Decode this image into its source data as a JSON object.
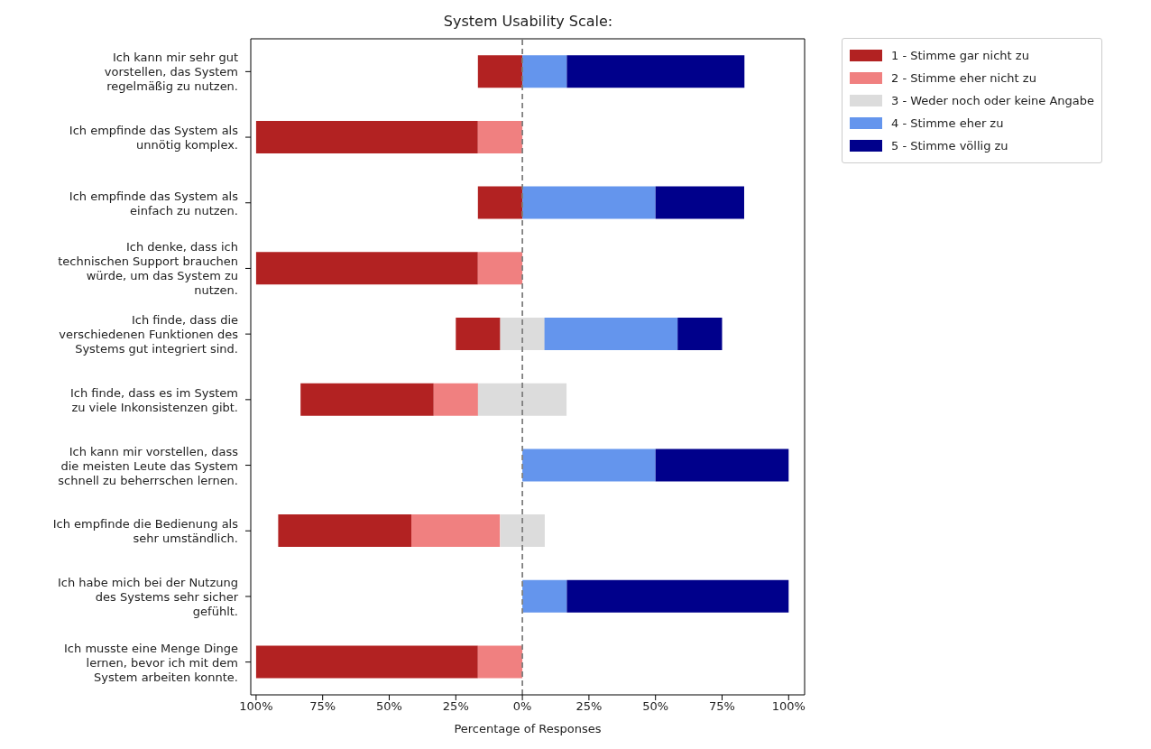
{
  "chart_data": {
    "type": "bar",
    "orientation": "horizontal",
    "title": "System Usability Scale:",
    "xlabel": "Percentage of Responses",
    "categories": [
      "Ich kann mir sehr gut vorstellen, das System regelmäßig zu nutzen.",
      "Ich empfinde das System als unnötig komplex.",
      "Ich empfinde das System als einfach zu nutzen.",
      "Ich denke, dass ich technischen Support brauchen würde, um das System zu nutzen.",
      "Ich finde, dass die verschiedenen Funktionen des Systems gut integriert sind.",
      "Ich finde, dass es im System zu viele Inkonsistenzen gibt.",
      "Ich kann mir vorstellen, dass die meisten Leute das System schnell zu beherrschen lernen.",
      "Ich empfinde die Bedienung als sehr umständlich.",
      "Ich habe mich bei der Nutzung des Systems sehr sicher gefühlt.",
      "Ich musste eine Menge Dinge lernen, bevor ich mit dem System arbeiten konnte."
    ],
    "series": [
      {
        "name": "1 - Stimme gar nicht zu",
        "color": "#b22222",
        "values": [
          16.7,
          83.3,
          16.7,
          83.3,
          16.7,
          50,
          null,
          50,
          null,
          83.3
        ],
        "base": [
          -16.7,
          -100,
          -16.7,
          -100,
          -25,
          -83.3,
          null,
          -91.7,
          null,
          -100
        ]
      },
      {
        "name": "2 - Stimme eher nicht zu",
        "color": "#f08080",
        "values": [
          null,
          16.7,
          null,
          16.7,
          null,
          16.7,
          null,
          33.3,
          null,
          16.7
        ],
        "base": [
          null,
          -16.7,
          null,
          -16.7,
          null,
          -33.3,
          null,
          -41.7,
          null,
          -16.7
        ]
      },
      {
        "name": "3 - Weder noch oder keine Angabe",
        "color": "#dcdcdc",
        "values": [
          null,
          null,
          null,
          null,
          16.7,
          33.3,
          null,
          16.7,
          null,
          null
        ],
        "base": [
          null,
          null,
          null,
          null,
          -8.3,
          -16.7,
          null,
          -8.3,
          null,
          null
        ]
      },
      {
        "name": "4 - Stimme eher zu",
        "color": "#6495ed",
        "values": [
          16.7,
          null,
          50,
          null,
          50,
          null,
          50,
          null,
          16.7,
          null
        ],
        "base": [
          0,
          null,
          0,
          null,
          8.3,
          null,
          0,
          null,
          0,
          null
        ]
      },
      {
        "name": "5 - Stimme völlig zu",
        "color": "#00008b",
        "values": [
          66.7,
          null,
          33.3,
          null,
          16.7,
          null,
          50,
          null,
          83.3,
          null
        ],
        "base": [
          16.7,
          null,
          50,
          null,
          58.3,
          null,
          50,
          null,
          16.7,
          null
        ]
      }
    ],
    "xlim": [
      -102,
      106
    ],
    "xticks": [
      {
        "value": -100,
        "label": "100%"
      },
      {
        "value": -75,
        "label": "75%"
      },
      {
        "value": -50,
        "label": "50%"
      },
      {
        "value": -25,
        "label": "25%"
      },
      {
        "value": 0,
        "label": "0%"
      },
      {
        "value": 25,
        "label": "25%"
      },
      {
        "value": 50,
        "label": "50%"
      },
      {
        "value": 75,
        "label": "75%"
      },
      {
        "value": 100,
        "label": "100%"
      }
    ],
    "ref_lines": [
      {
        "axis": "x",
        "value": 0,
        "color": "#808080",
        "line_style": "dashed"
      }
    ],
    "legend": "top right"
  }
}
